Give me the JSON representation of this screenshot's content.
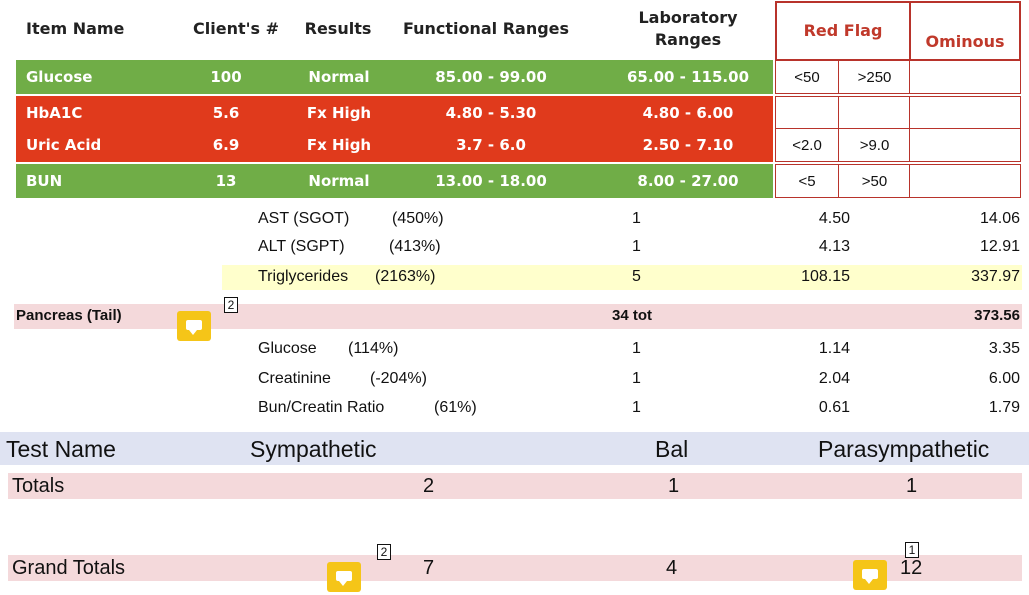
{
  "top_table": {
    "headers": {
      "item_name": "Item Name",
      "client": "Client's #",
      "results": "Results",
      "functional": "Functional Ranges",
      "lab_line1": "Laboratory",
      "lab_line2": "Ranges",
      "red_flag": "Red Flag",
      "ominous": "Ominous"
    },
    "rows": [
      {
        "name": "Glucose",
        "client": "100",
        "result": "Normal",
        "functional": "85.00 - 99.00",
        "lab": "65.00 - 115.00",
        "flag_low": "<50",
        "flag_high": ">250",
        "ominous": ""
      },
      {
        "name": "HbA1C",
        "client": "5.6",
        "result": "Fx High",
        "functional": "4.80 - 5.30",
        "lab": "4.80 - 6.00",
        "flag_low": "",
        "flag_high": "",
        "ominous": ""
      },
      {
        "name": "Uric Acid",
        "client": "6.9",
        "result": "Fx High",
        "functional": "3.7 - 6.0",
        "lab": "2.50 - 7.10",
        "flag_low": "<2.0",
        "flag_high": ">9.0",
        "ominous": ""
      },
      {
        "name": "BUN",
        "client": "13",
        "result": "Normal",
        "functional": "13.00 - 18.00",
        "lab": "8.00 - 27.00",
        "flag_low": "<5",
        "flag_high": ">50",
        "ominous": ""
      }
    ],
    "colors": {
      "normal": "#70ad47",
      "high": "#e03a1c",
      "flag_border": "#b8332b"
    }
  },
  "middle": {
    "rows1": [
      {
        "label": "AST (SGOT)",
        "pct": "(450%)",
        "count": "1",
        "v1": "4.50",
        "v2": "14.06"
      },
      {
        "label": "ALT (SGPT)",
        "pct": "(413%)",
        "count": "1",
        "v1": "4.13",
        "v2": "12.91"
      },
      {
        "label": "Triglycerides",
        "pct": "(2163%)",
        "count": "5",
        "v1": "108.15",
        "v2": "337.97"
      }
    ],
    "pancreas": {
      "label": "Pancreas (Tail)",
      "badge": "2",
      "count": "34 tot",
      "total": "373.56"
    },
    "rows2": [
      {
        "label": "Glucose",
        "pct": "(114%)",
        "count": "1",
        "v1": "1.14",
        "v2": "3.35"
      },
      {
        "label": "Creatinine",
        "pct": "(-204%)",
        "count": "1",
        "v1": "2.04",
        "v2": "6.00"
      },
      {
        "label": "Bun/Creatin Ratio",
        "pct": "(61%)",
        "count": "1",
        "v1": "0.61",
        "v2": "1.79"
      }
    ]
  },
  "bottom": {
    "headers": {
      "test": "Test Name",
      "symp": "Sympathetic",
      "bal": "Bal",
      "para": "Parasympathetic"
    },
    "totals": {
      "label": "Totals",
      "symp": "2",
      "bal": "1",
      "para": "1"
    },
    "grand": {
      "label": "Grand Totals",
      "symp": "7",
      "bal": "4",
      "para": "12",
      "badge_symp": "2",
      "badge_para": "1"
    }
  }
}
